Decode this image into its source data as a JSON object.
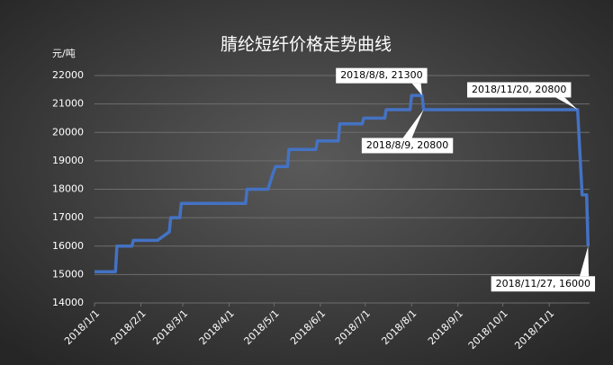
{
  "chart_data": {
    "type": "line",
    "title": "腈纶短纤价格走势曲线",
    "y_label": "元/吨",
    "color": "#4472c4",
    "grid": true,
    "xlim": [
      "2018/1/1",
      "2018/11/28"
    ],
    "xticks": [
      "2018/1/1",
      "2018/2/1",
      "2018/3/1",
      "2018/4/1",
      "2018/5/1",
      "2018/6/1",
      "2018/7/1",
      "2018/8/1",
      "2018/9/1",
      "2018/10/1",
      "2018/11/1"
    ],
    "ylim": [
      14000,
      22000
    ],
    "yticks": [
      14000,
      15000,
      16000,
      17000,
      18000,
      19000,
      20000,
      21000,
      22000
    ],
    "x": [
      "2018/1/1",
      "2018/1/15",
      "2018/1/16",
      "2018/1/26",
      "2018/1/27",
      "2018/2/12",
      "2018/2/20",
      "2018/2/21",
      "2018/2/27",
      "2018/2/28",
      "2018/4/12",
      "2018/4/13",
      "2018/4/27",
      "2018/4/30",
      "2018/5/2",
      "2018/5/10",
      "2018/5/11",
      "2018/5/29",
      "2018/5/30",
      "2018/6/13",
      "2018/6/14",
      "2018/6/29",
      "2018/6/30",
      "2018/7/14",
      "2018/7/15",
      "2018/7/31",
      "2018/8/1",
      "2018/8/8",
      "2018/8/9",
      "2018/11/20",
      "2018/11/23",
      "2018/11/26",
      "2018/11/27"
    ],
    "values": [
      15100,
      15100,
      16000,
      16000,
      16200,
      16200,
      16500,
      17000,
      17000,
      17500,
      17500,
      18000,
      18000,
      18500,
      18800,
      18800,
      19400,
      19400,
      19700,
      19700,
      20300,
      20300,
      20500,
      20500,
      20800,
      20800,
      21300,
      21300,
      20800,
      20800,
      17800,
      17800,
      16000
    ],
    "value_labels": [
      null,
      null,
      null,
      null,
      null,
      null,
      null,
      null,
      null,
      null,
      null,
      null,
      null,
      null,
      null,
      null,
      null,
      null,
      null,
      null,
      null,
      null,
      null,
      null,
      null,
      null,
      null,
      "2018/8/8, 21300",
      "2018/8/9, 20800",
      "2018/11/20, 20800",
      null,
      null,
      "2018/11/27, 16000"
    ]
  }
}
